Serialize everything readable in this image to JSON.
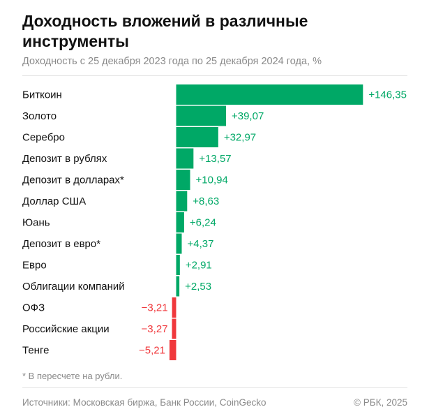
{
  "header": {
    "title": "Доходность вложений в различные инструменты",
    "subtitle": "Доходность с 25 декабря 2023 года по 25 декабря 2024 года, %"
  },
  "footer": {
    "footnote": "* В пересчете на рубли.",
    "source": "Источники: Московская биржа, Банк России, CoinGecko",
    "copyright": "© РБК, 2025"
  },
  "colors": {
    "positive": "#00a866",
    "negative": "#f0383c"
  },
  "chart_data": {
    "type": "bar",
    "orientation": "horizontal",
    "title": "Доходность вложений в различные инструменты",
    "subtitle": "Доходность с 25 декабря 2023 года по 25 декабря 2024 года, %",
    "categories": [
      "Биткоин",
      "Золото",
      "Серебро",
      "Депозит в рублях",
      "Депозит в долларах*",
      "Доллар США",
      "Юань",
      "Депозит в евро*",
      "Евро",
      "Облигации компаний",
      "ОФЗ",
      "Российские акции",
      "Тенге"
    ],
    "values": [
      146.35,
      39.07,
      32.97,
      13.57,
      10.94,
      8.63,
      6.24,
      4.37,
      2.91,
      2.53,
      -3.21,
      -3.27,
      -5.21
    ],
    "value_labels": [
      "+146,35",
      "+39,07",
      "+32,97",
      "+13,57",
      "+10,94",
      "+8,63",
      "+6,24",
      "+4,37",
      "+2,91",
      "+2,53",
      "−3,21",
      "−3,27",
      "−5,21"
    ],
    "grid": false,
    "legend": "none"
  }
}
